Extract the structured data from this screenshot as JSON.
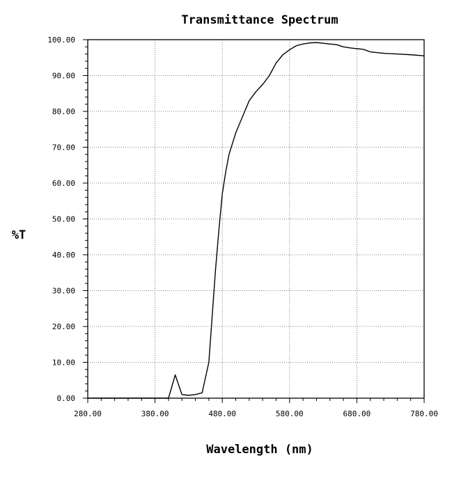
{
  "chart_data": {
    "type": "line",
    "title": "Transmittance Spectrum",
    "xlabel": "Wavelength (nm)",
    "ylabel": "%T",
    "xlim": [
      280,
      780
    ],
    "ylim": [
      0,
      100
    ],
    "x_ticks": [
      "280.00",
      "380.00",
      "480.00",
      "580.00",
      "680.00",
      "780.00"
    ],
    "y_ticks": [
      "0.00",
      "10.00",
      "20.00",
      "30.00",
      "40.00",
      "50.00",
      "60.00",
      "70.00",
      "80.00",
      "90.00",
      "100.00"
    ],
    "grid": true,
    "series": [
      {
        "x": [
          280,
          300,
          320,
          340,
          360,
          380,
          400,
          410,
          420,
          430,
          440,
          450,
          460,
          470,
          475,
          480,
          485,
          490,
          500,
          510,
          520,
          530,
          540,
          550,
          560,
          570,
          580,
          590,
          600,
          610,
          620,
          630,
          640,
          650,
          660,
          670,
          680,
          690,
          700,
          720,
          740,
          760,
          780
        ],
        "y": [
          0.0,
          0.0,
          0.0,
          0.0,
          0.0,
          0.0,
          0.0,
          6.5,
          1.0,
          0.8,
          1.0,
          1.5,
          10.0,
          36.0,
          47.0,
          57.0,
          63.0,
          68.0,
          74.0,
          78.5,
          83.0,
          85.5,
          87.5,
          90.0,
          93.5,
          95.8,
          97.2,
          98.3,
          98.8,
          99.1,
          99.2,
          99.0,
          98.8,
          98.6,
          98.0,
          97.7,
          97.5,
          97.3,
          96.6,
          96.2,
          96.0,
          95.8,
          95.5
        ]
      }
    ]
  }
}
